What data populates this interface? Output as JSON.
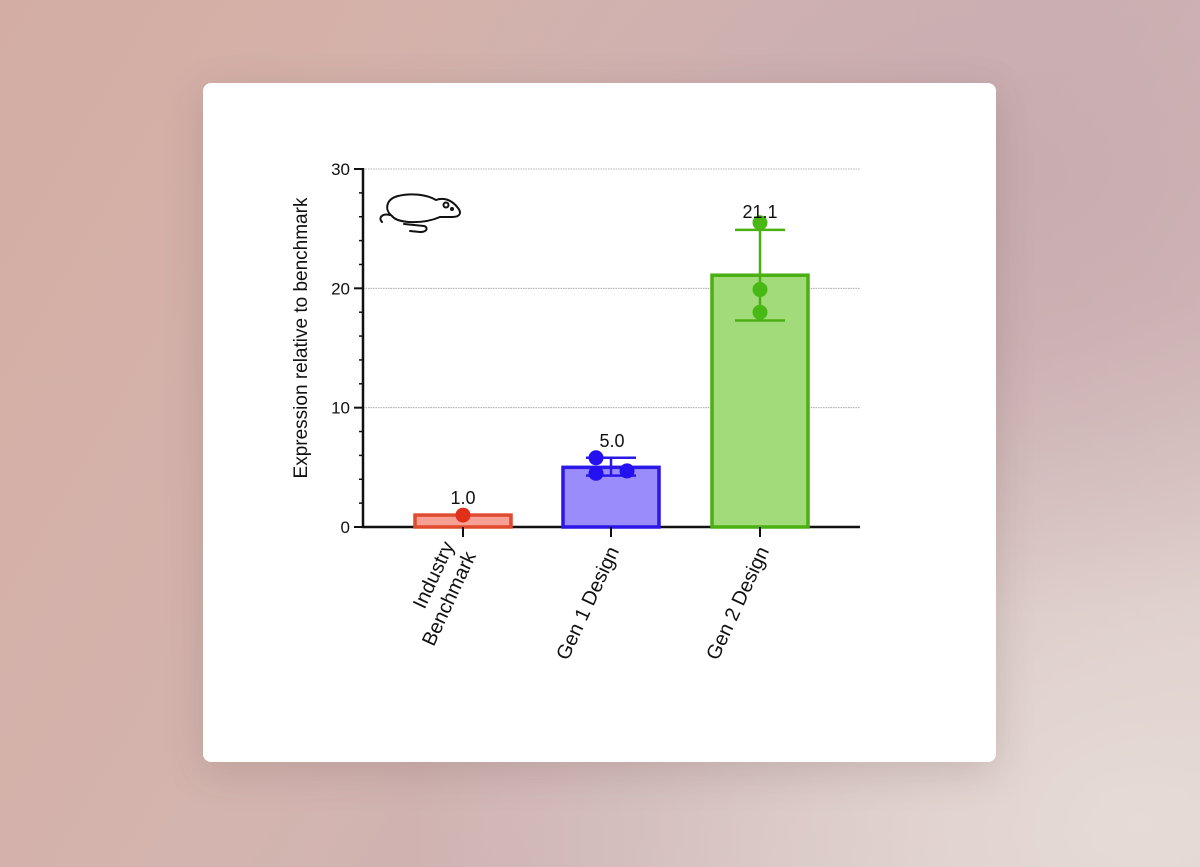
{
  "chart_data": {
    "type": "bar",
    "categories": [
      "Industry\nBenchmark",
      "Gen 1 Design",
      "Gen 2 Design"
    ],
    "values": [
      1.0,
      5.0,
      21.1
    ],
    "value_labels": [
      "1.0",
      "5.0",
      "21.1"
    ],
    "error_low": [
      1.0,
      4.3,
      17.3
    ],
    "error_high": [
      1.0,
      5.8,
      24.9
    ],
    "replicates": [
      [
        1.0
      ],
      [
        5.8,
        4.5,
        4.7
      ],
      [
        25.5,
        19.9,
        18.0
      ]
    ],
    "colors": {
      "stroke": [
        "#e04a2e",
        "#2a17e8",
        "#4aaf12"
      ],
      "fill": [
        "#f7a096",
        "#9a8dfb",
        "#a2dc7a"
      ],
      "dots": [
        "#e0301a",
        "#2410f0",
        "#48b814"
      ]
    },
    "title": "",
    "xlabel": "",
    "ylabel": "Expression relative to benchmark",
    "ylim": [
      0,
      30
    ],
    "yticks": [
      0,
      10,
      20,
      30
    ],
    "grid": true,
    "icon": "mouse-icon"
  }
}
